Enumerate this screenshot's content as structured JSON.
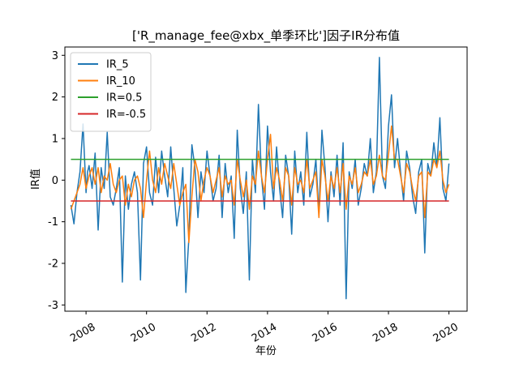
{
  "chart_data": {
    "type": "line",
    "title": "['R_manage_fee@xbx_单季环比']因子IR分布值",
    "xlabel": "年份",
    "ylabel": "IR值",
    "xlim": [
      2007.3,
      2020.6
    ],
    "ylim": [
      -3.15,
      3.2
    ],
    "xticks": [
      2008,
      2010,
      2012,
      2014,
      2016,
      2018,
      2020
    ],
    "xtick_labels": [
      "2008",
      "2010",
      "2012",
      "2014",
      "2016",
      "2018",
      "2020"
    ],
    "yticks": [
      -3,
      -2,
      -1,
      0,
      1,
      2,
      3
    ],
    "ytick_labels": [
      "-3",
      "-2",
      "-1",
      "0",
      "1",
      "2",
      "3"
    ],
    "grid": false,
    "legend_position": "upper-left",
    "series": [
      {
        "name": "IR_5",
        "color": "#1f77b4",
        "x": [
          2007.5,
          2007.6,
          2007.7,
          2007.8,
          2007.9,
          2008.0,
          2008.05,
          2008.1,
          2008.2,
          2008.3,
          2008.4,
          2008.5,
          2008.6,
          2008.7,
          2008.8,
          2008.9,
          2009.0,
          2009.1,
          2009.2,
          2009.3,
          2009.4,
          2009.5,
          2009.6,
          2009.7,
          2009.8,
          2009.9,
          2010.0,
          2010.1,
          2010.2,
          2010.3,
          2010.4,
          2010.5,
          2010.6,
          2010.7,
          2010.8,
          2010.9,
          2011.0,
          2011.1,
          2011.2,
          2011.3,
          2011.35,
          2011.4,
          2011.5,
          2011.6,
          2011.7,
          2011.8,
          2011.9,
          2012.0,
          2012.1,
          2012.2,
          2012.3,
          2012.4,
          2012.5,
          2012.6,
          2012.7,
          2012.8,
          2012.9,
          2013.0,
          2013.1,
          2013.2,
          2013.3,
          2013.4,
          2013.5,
          2013.6,
          2013.7,
          2013.8,
          2013.9,
          2014.0,
          2014.1,
          2014.2,
          2014.3,
          2014.4,
          2014.5,
          2014.6,
          2014.7,
          2014.8,
          2014.9,
          2015.0,
          2015.1,
          2015.2,
          2015.3,
          2015.4,
          2015.5,
          2015.6,
          2015.7,
          2015.8,
          2015.9,
          2016.0,
          2016.1,
          2016.2,
          2016.3,
          2016.4,
          2016.5,
          2016.6,
          2016.7,
          2016.8,
          2016.9,
          2017.0,
          2017.1,
          2017.2,
          2017.3,
          2017.4,
          2017.5,
          2017.6,
          2017.7,
          2017.8,
          2017.9,
          2018.0,
          2018.1,
          2018.2,
          2018.3,
          2018.4,
          2018.5,
          2018.6,
          2018.7,
          2018.8,
          2018.9,
          2019.0,
          2019.1,
          2019.2,
          2019.3,
          2019.4,
          2019.5,
          2019.6,
          2019.7,
          2019.8,
          2019.9,
          2020.0
        ],
        "values": [
          -0.6,
          -1.05,
          -0.3,
          0.2,
          1.35,
          -0.3,
          0.2,
          0.35,
          -0.2,
          0.65,
          -1.2,
          0.3,
          -0.2,
          1.15,
          -0.4,
          -0.6,
          -0.2,
          0.3,
          -2.45,
          0.1,
          -0.7,
          -0.1,
          0.2,
          -0.3,
          -2.4,
          0.4,
          0.8,
          -0.3,
          -0.6,
          0.55,
          -0.3,
          0.7,
          0.1,
          -0.4,
          0.8,
          -0.2,
          -1.1,
          -0.6,
          0.3,
          -2.7,
          -2.0,
          -1.4,
          0.85,
          0.3,
          -0.9,
          0.2,
          -0.3,
          0.7,
          0.1,
          -0.5,
          -0.2,
          0.6,
          -0.9,
          0.4,
          -0.3,
          0.1,
          -1.4,
          1.2,
          -0.2,
          -0.8,
          0.2,
          -2.4,
          0.5,
          -0.3,
          1.82,
          0.1,
          -0.7,
          1.3,
          0.2,
          -0.5,
          0.8,
          -0.2,
          -0.9,
          0.6,
          0.1,
          -1.3,
          0.7,
          -0.3,
          0.2,
          -0.6,
          1.15,
          -0.4,
          -0.1,
          0.5,
          -0.8,
          1.2,
          0.3,
          -1.0,
          0.2,
          -0.4,
          0.6,
          -0.6,
          0.9,
          -2.85,
          0.2,
          -0.2,
          0.5,
          -0.6,
          -0.2,
          0.4,
          0.1,
          1.0,
          -0.3,
          0.2,
          2.95,
          0.1,
          -0.2,
          1.3,
          2.05,
          0.3,
          1.0,
          0.2,
          -0.5,
          0.7,
          0.3,
          -0.4,
          -0.8,
          0.2,
          0.5,
          -1.75,
          0.4,
          0.1,
          0.9,
          0.3,
          1.5,
          -0.2,
          -0.5,
          0.4
        ]
      },
      {
        "name": "IR_10",
        "color": "#ff7f0e",
        "x": [
          2007.5,
          2007.6,
          2007.7,
          2007.8,
          2007.9,
          2008.0,
          2008.1,
          2008.2,
          2008.3,
          2008.4,
          2008.5,
          2008.6,
          2008.7,
          2008.8,
          2008.9,
          2009.0,
          2009.1,
          2009.2,
          2009.3,
          2009.4,
          2009.5,
          2009.6,
          2009.7,
          2009.8,
          2009.9,
          2010.0,
          2010.1,
          2010.2,
          2010.3,
          2010.4,
          2010.5,
          2010.6,
          2010.7,
          2010.8,
          2010.9,
          2011.0,
          2011.1,
          2011.2,
          2011.3,
          2011.4,
          2011.5,
          2011.6,
          2011.7,
          2011.8,
          2011.9,
          2012.0,
          2012.1,
          2012.2,
          2012.3,
          2012.4,
          2012.5,
          2012.6,
          2012.7,
          2012.8,
          2012.9,
          2013.0,
          2013.1,
          2013.2,
          2013.3,
          2013.4,
          2013.5,
          2013.6,
          2013.7,
          2013.8,
          2013.9,
          2014.0,
          2014.1,
          2014.2,
          2014.3,
          2014.4,
          2014.5,
          2014.6,
          2014.7,
          2014.8,
          2014.9,
          2015.0,
          2015.1,
          2015.2,
          2015.3,
          2015.4,
          2015.5,
          2015.6,
          2015.7,
          2015.8,
          2015.9,
          2016.0,
          2016.1,
          2016.2,
          2016.3,
          2016.4,
          2016.5,
          2016.6,
          2016.7,
          2016.8,
          2016.9,
          2017.0,
          2017.1,
          2017.2,
          2017.3,
          2017.4,
          2017.5,
          2017.6,
          2017.7,
          2017.8,
          2017.9,
          2018.0,
          2018.1,
          2018.2,
          2018.3,
          2018.4,
          2018.5,
          2018.6,
          2018.7,
          2018.8,
          2018.9,
          2019.0,
          2019.1,
          2019.2,
          2019.3,
          2019.4,
          2019.5,
          2019.6,
          2019.7,
          2019.8,
          2019.9,
          2020.0
        ],
        "values": [
          -0.7,
          -0.5,
          -0.3,
          -0.1,
          0.3,
          -0.2,
          0.1,
          0.3,
          -0.1,
          0.3,
          -0.3,
          0.1,
          0.0,
          0.4,
          -0.1,
          -0.3,
          0.0,
          0.1,
          -0.6,
          -0.1,
          -0.4,
          0.0,
          0.1,
          -0.2,
          -0.9,
          0.0,
          0.7,
          0.0,
          -0.3,
          0.3,
          -0.1,
          0.4,
          0.1,
          -0.2,
          0.4,
          -0.1,
          -0.6,
          -0.3,
          -0.1,
          -1.5,
          -0.4,
          0.5,
          0.2,
          -0.5,
          0.0,
          0.3,
          0.1,
          -0.3,
          0.0,
          0.3,
          -0.4,
          0.1,
          -0.1,
          0.0,
          -0.6,
          0.5,
          0.0,
          -0.4,
          0.0,
          -0.7,
          0.1,
          -0.1,
          0.7,
          0.1,
          -0.3,
          0.5,
          1.1,
          -0.2,
          0.3,
          0.0,
          -0.5,
          0.3,
          0.1,
          -0.6,
          0.3,
          -0.1,
          0.0,
          -0.3,
          0.5,
          -0.2,
          0.0,
          0.2,
          -0.9,
          0.5,
          0.1,
          -0.5,
          0.1,
          -0.2,
          0.3,
          -0.3,
          0.4,
          -0.7,
          0.1,
          -0.1,
          0.3,
          -0.3,
          -0.1,
          0.2,
          0.1,
          0.5,
          -0.1,
          0.1,
          0.6,
          0.1,
          0.0,
          0.6,
          1.3,
          0.5,
          0.5,
          0.1,
          -0.3,
          0.4,
          0.2,
          -0.2,
          -0.5,
          0.1,
          0.2,
          -0.9,
          0.2,
          0.1,
          0.5,
          0.3,
          0.7,
          0.0,
          -0.3,
          -0.1
        ]
      },
      {
        "name": "IR=0.5",
        "color": "#2ca02c",
        "x": [
          2007.5,
          2020.0
        ],
        "values": [
          0.5,
          0.5
        ]
      },
      {
        "name": "IR=-0.5",
        "color": "#d62728",
        "x": [
          2007.5,
          2020.0
        ],
        "values": [
          -0.5,
          -0.5
        ]
      }
    ]
  }
}
